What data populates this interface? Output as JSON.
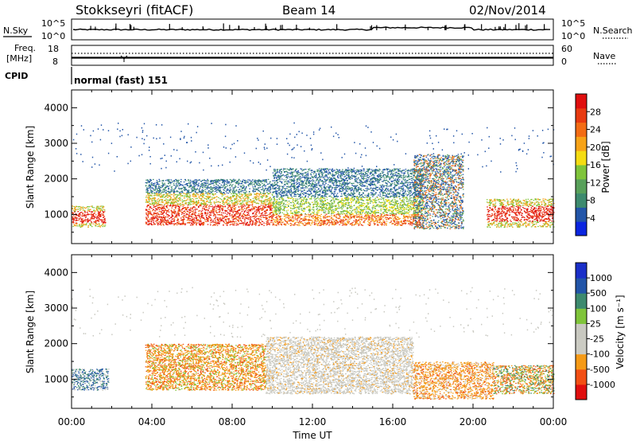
{
  "header": {
    "station": "Stokkseyri (fitACF)",
    "beam": "Beam 14",
    "date": "02/Nov/2014"
  },
  "noise_panel": {
    "left_label": "N.Sky",
    "left_ticks": [
      "10^5",
      "10^0"
    ],
    "right_label": "N.Search",
    "right_ticks": [
      "10^5",
      "10^0"
    ]
  },
  "freq_panel": {
    "left_label_line1": "Freq.",
    "left_label_line2": "[MHz]",
    "left_ticks": [
      "18",
      "8"
    ],
    "right_label": "Nave",
    "right_ticks": [
      "60",
      "0"
    ]
  },
  "cpid": {
    "label": "CPID",
    "text": "normal (fast) 151"
  },
  "xaxis": {
    "title": "Time UT",
    "ticks": [
      "00:00",
      "04:00",
      "08:00",
      "12:00",
      "16:00",
      "20:00",
      "00:00"
    ]
  },
  "colors": {
    "low_velocity_gray": "#c8c8c0",
    "power_scale": [
      "#0a25e0",
      "#2255a8",
      "#3d8a6e",
      "#58a05a",
      "#7fc43a",
      "#f5dc12",
      "#f7a318",
      "#f36c14",
      "#e83a10",
      "#e00e0e"
    ],
    "velocity_scale": [
      "#e00e0e",
      "#f24f14",
      "#f59a16",
      "#cbcbc3",
      "#c8c8c0",
      "#7fc43a",
      "#3d8a6e",
      "#2255a8",
      "#1a2fc8"
    ]
  },
  "chart_data": [
    {
      "type": "heatmap",
      "title": "",
      "xlabel": "",
      "ylabel": "Slant Range [km]",
      "x_range_hours": [
        0,
        24
      ],
      "ylim": [
        180,
        4500
      ],
      "yticks": [
        "1000",
        "2000",
        "3000",
        "4000"
      ],
      "colorbar": {
        "label": "Power [dB]",
        "ticks": [
          "4",
          "8",
          "12",
          "16",
          "20",
          "24",
          "28"
        ],
        "range": [
          0,
          30
        ]
      },
      "echo_regions": [
        {
          "time_start": "00:00",
          "time_end": "01:40",
          "range_low_km": 650,
          "range_high_km": 1250,
          "power_db": "20-28"
        },
        {
          "time_start": "03:40",
          "time_end": "10:00",
          "range_low_km": 700,
          "range_high_km": 2000,
          "power_db": "16-30"
        },
        {
          "time_start": "10:00",
          "time_end": "17:30",
          "range_low_km": 700,
          "range_high_km": 2300,
          "power_db": "4-20"
        },
        {
          "time_start": "17:00",
          "time_end": "19:30",
          "range_low_km": 600,
          "range_high_km": 2700,
          "power_db": "8-28"
        },
        {
          "time_start": "20:40",
          "time_end": "24:00",
          "range_low_km": 650,
          "range_high_km": 1450,
          "power_db": "16-30"
        }
      ]
    },
    {
      "type": "heatmap",
      "title": "",
      "xlabel": "Time UT",
      "ylabel": "Slant Range [km]",
      "x_range_hours": [
        0,
        24
      ],
      "ylim": [
        180,
        4500
      ],
      "yticks": [
        "1000",
        "2000",
        "3000",
        "4000"
      ],
      "colorbar": {
        "label": "Velocity [m s⁻¹]",
        "ticks": [
          "1000",
          "500",
          "100",
          "25",
          "-25",
          "-100",
          "-500",
          "-1000"
        ],
        "range": [
          -1000,
          1000
        ]
      },
      "echo_regions": [
        {
          "time_start": "00:00",
          "time_end": "01:50",
          "range_low_km": 700,
          "range_high_km": 1300,
          "velocity": "positive/mixed"
        },
        {
          "time_start": "03:40",
          "time_end": "09:40",
          "range_low_km": 700,
          "range_high_km": 2000,
          "velocity": "-100 to -500"
        },
        {
          "time_start": "09:40",
          "time_end": "17:00",
          "range_low_km": 600,
          "range_high_km": 2200,
          "velocity": "-25 to 25"
        },
        {
          "time_start": "17:00",
          "time_end": "21:00",
          "range_low_km": 450,
          "range_high_km": 1500,
          "velocity": "-100 to -500"
        },
        {
          "time_start": "21:00",
          "time_end": "24:00",
          "range_low_km": 600,
          "range_high_km": 1400,
          "velocity": "mixed"
        }
      ]
    }
  ]
}
